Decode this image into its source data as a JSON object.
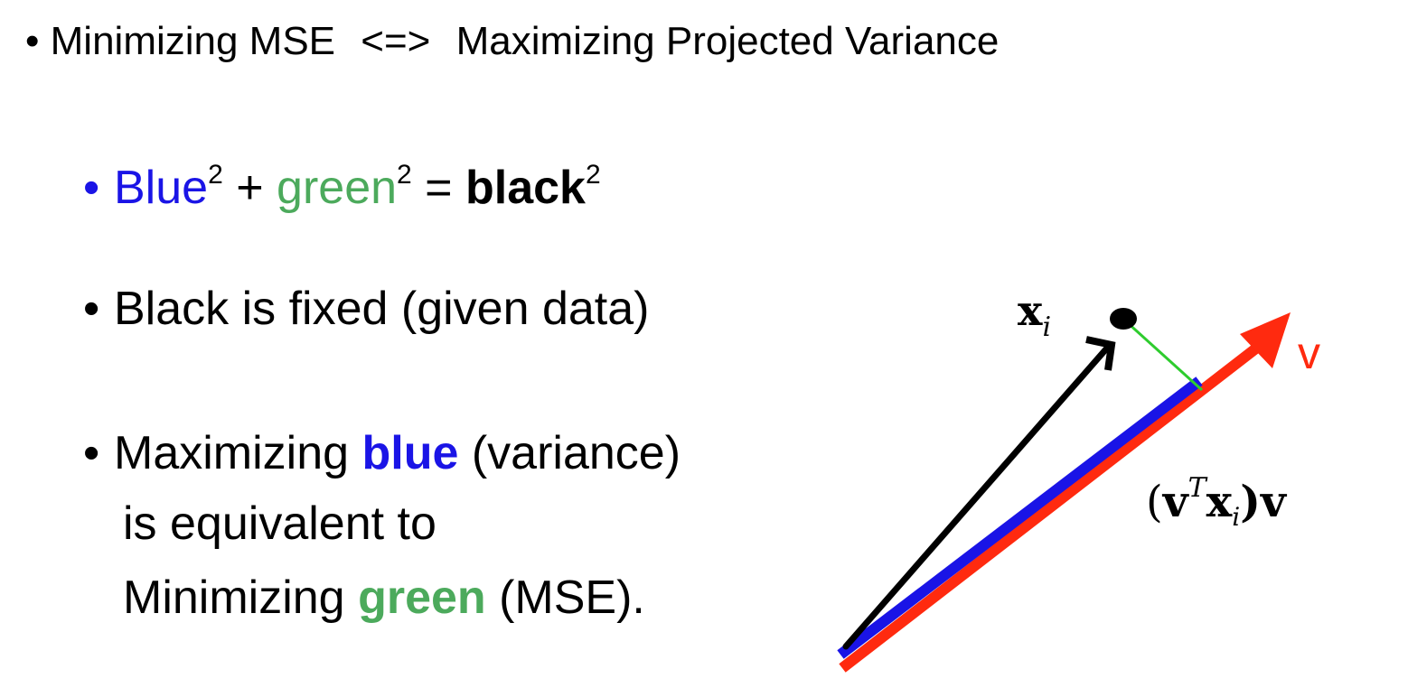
{
  "colors": {
    "blue": "#1a14e6",
    "green": "#4caa5c",
    "black": "#000000",
    "red": "#ff2a0f",
    "thin_green": "#2ecc2e"
  },
  "top": {
    "bullet": "•",
    "left": "Minimizing MSE",
    "middle": "<=>",
    "right": "Maximizing Projected Variance"
  },
  "bullets": {
    "symbol": "•",
    "eq": {
      "blue": "Blue",
      "sq1": "2",
      "plus": " + ",
      "green": "green",
      "sq2": "2",
      "equals": " = ",
      "black": "black",
      "sq3": "2"
    },
    "fixed": "Black is fixed (given data)",
    "max": {
      "pre": "Maximizing ",
      "blue": "blue",
      "post": " (variance)",
      "line2": "is equivalent to",
      "line3_pre": "Minimizing ",
      "line3_green": "green",
      "line3_post": " (MSE)."
    }
  },
  "diagram": {
    "xi_main": "x",
    "xi_sub": "i",
    "v_label": "v",
    "proj": {
      "open": "(",
      "v": "v",
      "T": "T",
      "x": "x",
      "i": "i",
      "close": ")v"
    }
  }
}
